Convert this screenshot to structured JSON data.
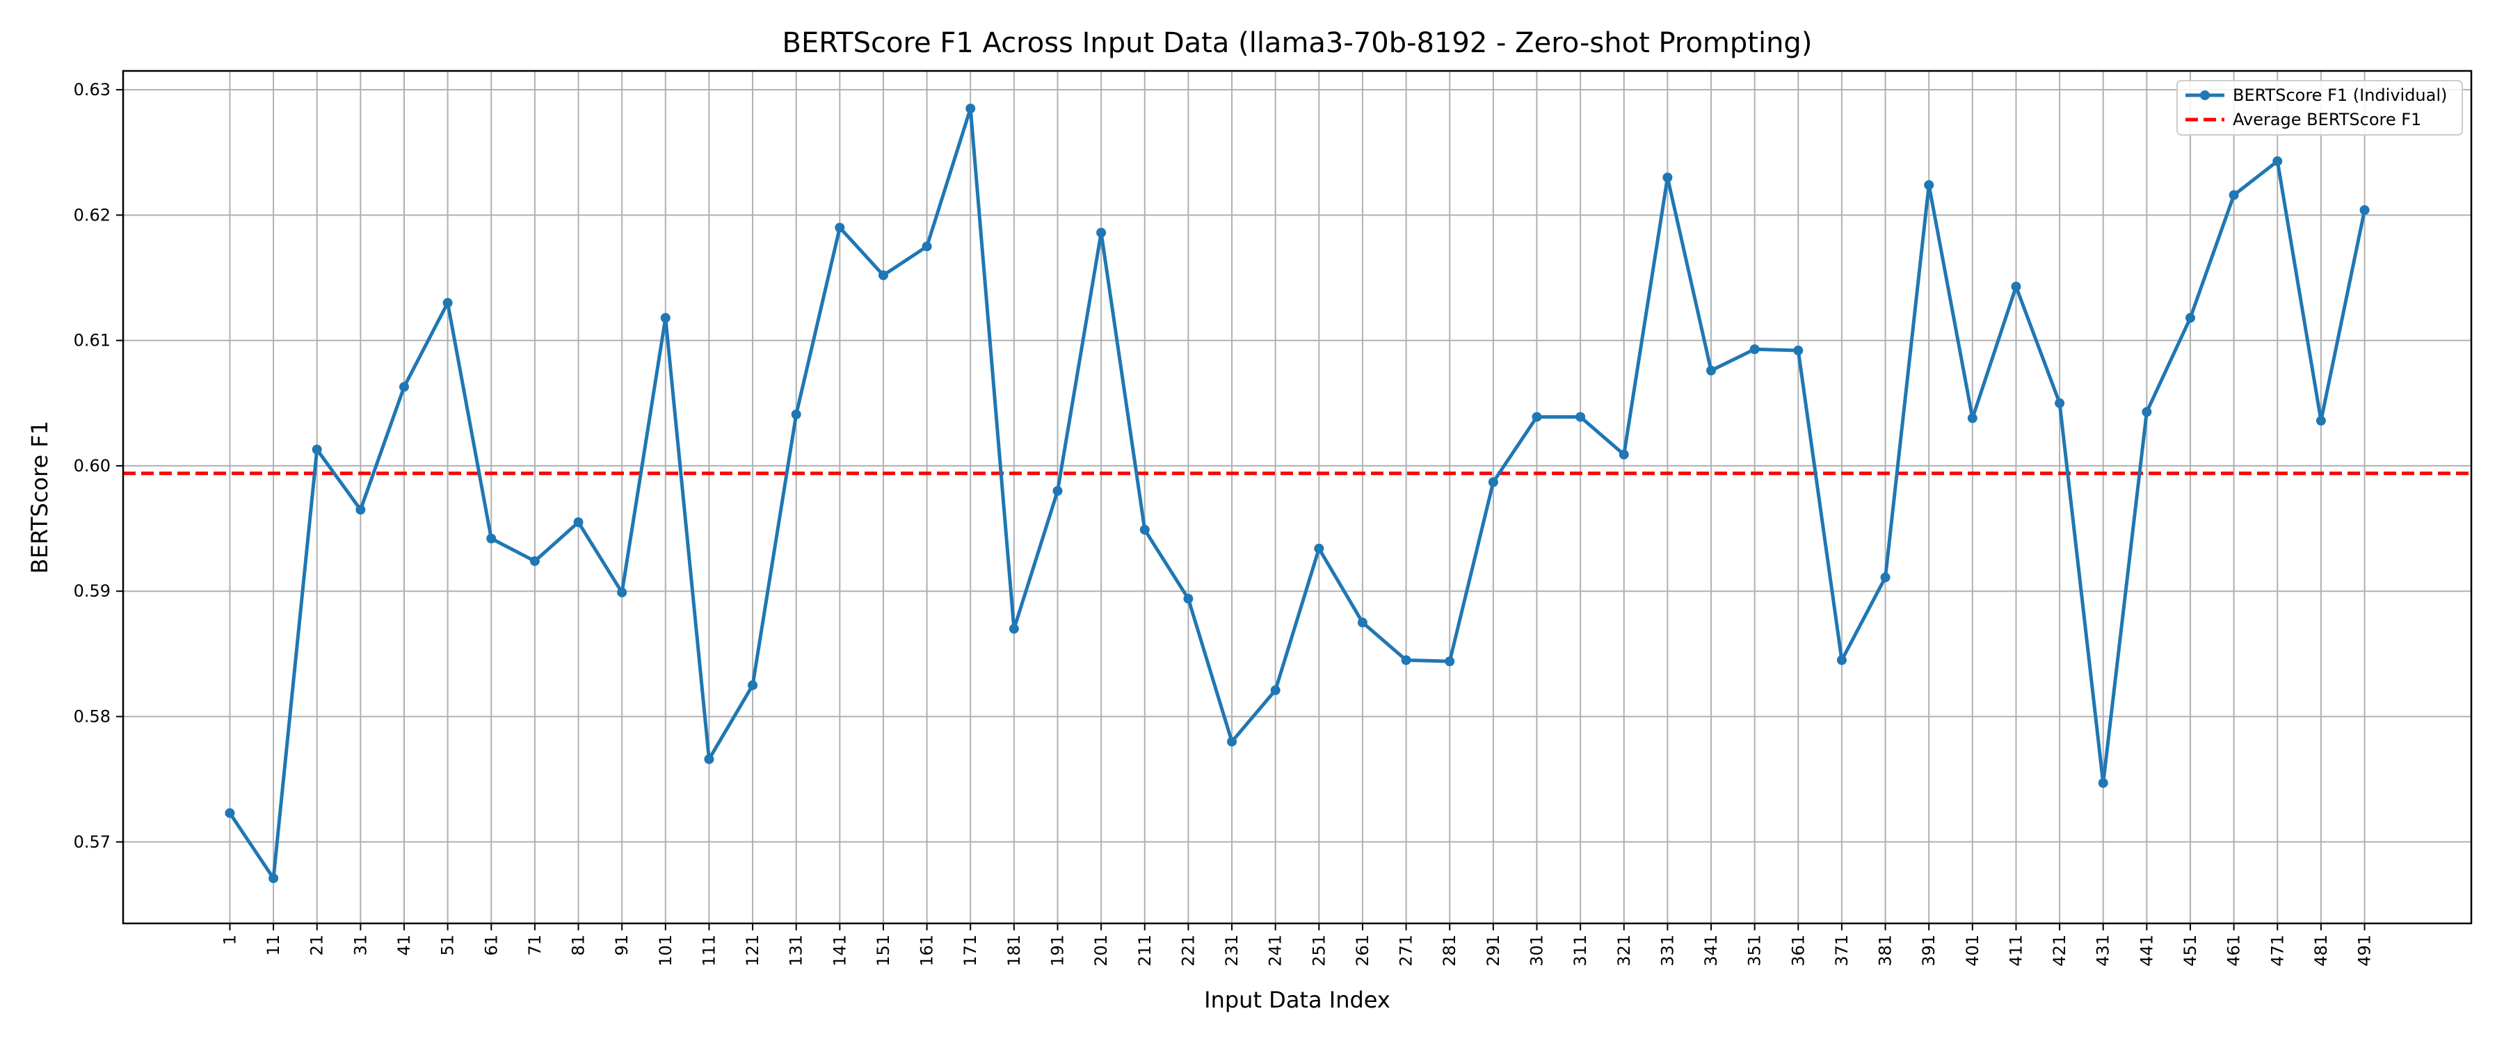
{
  "chart_data": {
    "type": "line",
    "title": "BERTScore F1 Across Input Data (llama3-70b-8192 - Zero-shot Prompting)",
    "xlabel": "Input Data Index",
    "ylabel": "BERTScore F1",
    "x": [
      1,
      11,
      21,
      31,
      41,
      51,
      61,
      71,
      81,
      91,
      101,
      111,
      121,
      131,
      141,
      151,
      161,
      171,
      181,
      191,
      201,
      211,
      221,
      231,
      241,
      251,
      261,
      271,
      281,
      291,
      301,
      311,
      321,
      331,
      341,
      351,
      361,
      371,
      381,
      391,
      401,
      411,
      421,
      431,
      441,
      451,
      461,
      471,
      481,
      491
    ],
    "series": [
      {
        "name": "BERTScore F1 (Individual)",
        "color": "#1f77b4",
        "values": [
          0.5723,
          0.5671,
          0.6013,
          0.5965,
          0.6063,
          0.613,
          0.5942,
          0.5924,
          0.5955,
          0.5899,
          0.6118,
          0.5766,
          0.5825,
          0.6041,
          0.619,
          0.6152,
          0.6175,
          0.6285,
          0.587,
          0.598,
          0.6186,
          0.5949,
          0.5894,
          0.578,
          0.5821,
          0.5934,
          0.5875,
          0.5845,
          0.5844,
          0.5987,
          0.6039,
          0.6039,
          0.6009,
          0.623,
          0.6076,
          0.6093,
          0.6092,
          0.5845,
          0.5911,
          0.6224,
          0.6038,
          0.6143,
          0.605,
          0.5747,
          0.6043,
          0.6118,
          0.6216,
          0.6243,
          0.6036,
          0.6204
        ]
      }
    ],
    "average": {
      "name": "Average BERTScore F1",
      "value": 0.5994,
      "color": "#ff0000"
    },
    "xticks": [
      "1",
      "11",
      "21",
      "31",
      "41",
      "51",
      "61",
      "71",
      "81",
      "91",
      "101",
      "111",
      "121",
      "131",
      "141",
      "151",
      "161",
      "171",
      "181",
      "191",
      "201",
      "211",
      "221",
      "231",
      "241",
      "251",
      "261",
      "271",
      "281",
      "291",
      "301",
      "311",
      "321",
      "331",
      "341",
      "351",
      "361",
      "371",
      "381",
      "391",
      "401",
      "411",
      "421",
      "431",
      "441",
      "451",
      "461",
      "471",
      "481",
      "491"
    ],
    "yticks": [
      0.57,
      0.58,
      0.59,
      0.6,
      0.61,
      0.62,
      0.63
    ],
    "yticklabels": [
      "0.57",
      "0.58",
      "0.59",
      "0.60",
      "0.61",
      "0.62",
      "0.63"
    ],
    "ylim": [
      0.5635,
      0.6315
    ],
    "xlim": [
      -23.5,
      515.5
    ],
    "grid": true,
    "legend_position": "top-right"
  }
}
